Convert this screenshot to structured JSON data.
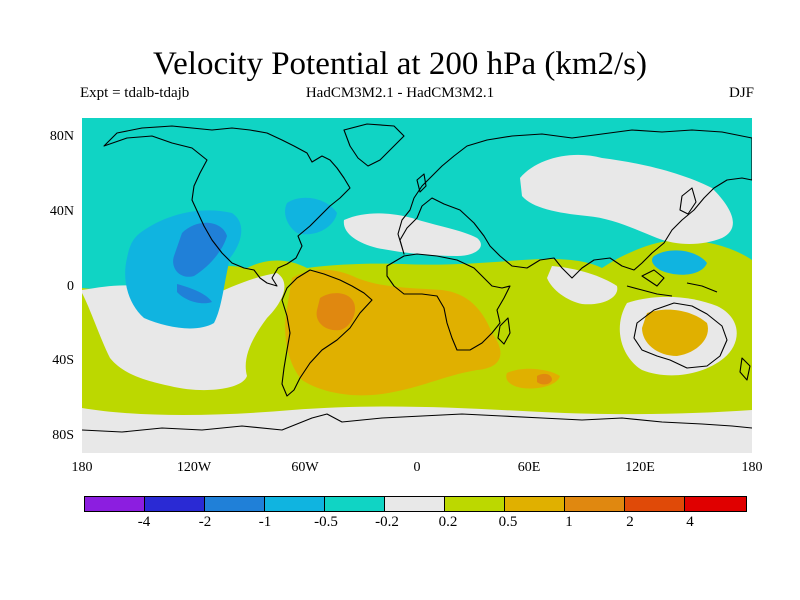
{
  "title": "Velocity Potential at 200 hPa (km2/s)",
  "subtitle_left": "Expt = tdalb-tdajb",
  "subtitle_center": "HadCM3M2.1 - HadCM3M2.1",
  "subtitle_right": "DJF",
  "lat_labels": [
    "80N",
    "40N",
    "0",
    "40S",
    "80S"
  ],
  "lon_labels": [
    "180",
    "120W",
    "60W",
    "0",
    "60E",
    "120E",
    "180"
  ],
  "colorbar": {
    "labels": [
      "-4",
      "-2",
      "-1",
      "-0.5",
      "-0.2",
      "0.2",
      "0.5",
      "1",
      "2",
      "4"
    ],
    "colors": [
      "#8c1ee0",
      "#2a2ad4",
      "#2080d8",
      "#10b4e0",
      "#10d4c4",
      "#e8e8e8",
      "#bcd800",
      "#e0b000",
      "#e08810",
      "#e04a08",
      "#e00000"
    ]
  },
  "map": {
    "background_class": "0.2 to 0.5",
    "background_color": "#bcd800",
    "regions": [
      {
        "class": "-0.5 to -0.2",
        "color": "#10d4c4",
        "label": "northern mid-latitudes and North Pacific"
      },
      {
        "class": "-0.2 to 0.2",
        "color": "#e8e8e8",
        "label": "eastern Pacific / South America band"
      },
      {
        "class": "-0.2 to 0.2",
        "color": "#e8e8e8",
        "label": "North Atlantic / Europe"
      },
      {
        "class": "-0.2 to 0.2",
        "color": "#e8e8e8",
        "label": "Central Asia"
      },
      {
        "class": "-0.2 to 0.2",
        "color": "#e8e8e8",
        "label": "Indian Ocean"
      },
      {
        "class": "-0.2 to 0.2",
        "color": "#e8e8e8",
        "label": "Western Pacific / Australia"
      },
      {
        "class": "-0.2 to 0.2",
        "color": "#e8e8e8",
        "label": "Southern Ocean"
      },
      {
        "class": "-1 to -0.5",
        "color": "#10b4e0",
        "label": "eastern Pacific"
      },
      {
        "class": "-1 to -0.5",
        "color": "#10b4e0",
        "label": "western Atlantic"
      },
      {
        "class": "-1 to -0.5",
        "color": "#10b4e0",
        "label": "maritime continent"
      },
      {
        "class": "-2 to -1",
        "color": "#2080d8",
        "label": "eastern Pacific core"
      },
      {
        "class": "0.5 to 1",
        "color": "#e0b000",
        "label": "South Atlantic / Africa"
      },
      {
        "class": "0.5 to 1",
        "color": "#e0b000",
        "label": "Australia"
      },
      {
        "class": "0.5 to 1",
        "color": "#e0b000",
        "label": "southern Indian Ocean"
      },
      {
        "class": "1 to 2",
        "color": "#e08810",
        "label": "Brazil"
      },
      {
        "class": "1 to 2",
        "color": "#e08810",
        "label": "southern Indian Ocean core"
      }
    ]
  }
}
